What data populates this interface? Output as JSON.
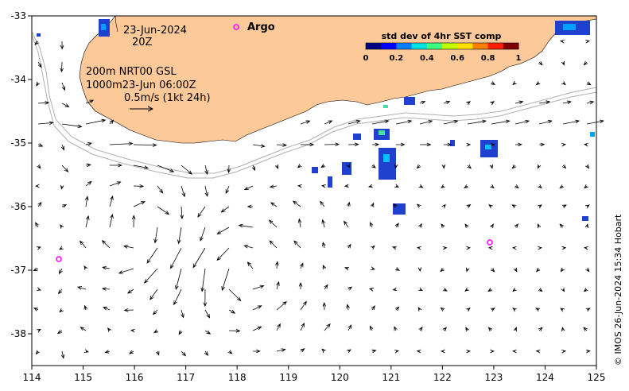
{
  "map": {
    "date": "23-Jun-2024",
    "hour": "20Z",
    "depth_line1": "200m  NRT00 GSL",
    "depth_line2": "1000m23-Jun 06:00Z",
    "scale_label": "0.5m/s (1kt 24h)",
    "legend_argo": "Argo",
    "colorbar": {
      "title": "std dev of 4hr SST comp",
      "ticks": [
        "0",
        "0.2",
        "0.4",
        "0.6",
        "0.8",
        "1"
      ],
      "colors": [
        "#000080",
        "#0000ff",
        "#0080ff",
        "#00e0e0",
        "#40ff80",
        "#c0ff00",
        "#ffe000",
        "#ff8000",
        "#ff2000",
        "#800000"
      ]
    },
    "x_ticks": [
      "114",
      "115",
      "116",
      "117",
      "118",
      "119",
      "120",
      "121",
      "122",
      "123",
      "124",
      "125"
    ],
    "y_ticks": [
      "-33",
      "-34",
      "-35",
      "-36",
      "-37",
      "-38"
    ],
    "credit": "© IMOS 26-Jun-2024 15:34 Hobart",
    "colors": {
      "land": "#fdc998",
      "argo": "#ff00ff",
      "vector": "#000000",
      "isobath": "#b0b0b0"
    }
  }
}
